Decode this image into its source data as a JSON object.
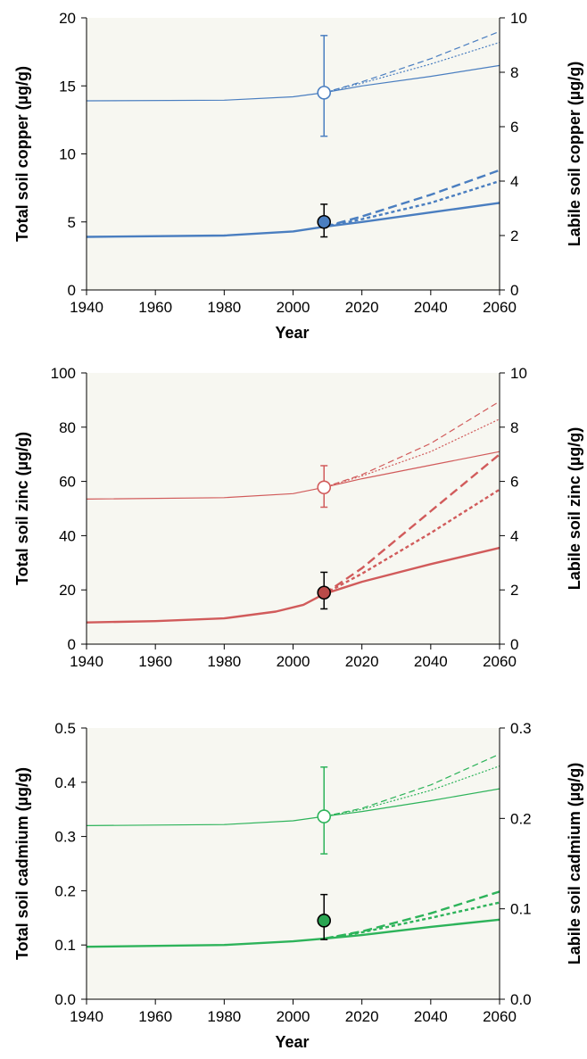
{
  "chart_data": [
    {
      "type": "line",
      "xlabel": "Year",
      "ylabel_left": "Total soil copper (µg/g)",
      "ylabel_right": "Labile soil copper (µg/g)",
      "xlim": [
        1940,
        2060
      ],
      "ylim_left": [
        0,
        20
      ],
      "ylim_right": [
        0,
        10
      ],
      "x_ticks": [
        1940,
        1960,
        1980,
        2000,
        2020,
        2040,
        2060
      ],
      "y_ticks_left": [
        0,
        5,
        10,
        15,
        20
      ],
      "y_ticks_right": [
        0,
        2,
        4,
        6,
        8,
        10
      ],
      "color": "#4a7ec0",
      "marker_color": "#4a7ec0",
      "grid": false,
      "background": "#f7f7f1",
      "series": [
        {
          "axis": "left",
          "style": "thin-solid",
          "x": [
            1940,
            1980,
            2000,
            2009,
            2020,
            2040,
            2060
          ],
          "y": [
            13.9,
            13.95,
            14.2,
            14.5,
            15.0,
            15.7,
            16.5
          ]
        },
        {
          "axis": "left",
          "style": "thin-dashed",
          "x": [
            2009,
            2020,
            2040,
            2060
          ],
          "y": [
            14.5,
            15.3,
            17.0,
            19.0
          ]
        },
        {
          "axis": "left",
          "style": "thin-dotted",
          "x": [
            2009,
            2020,
            2040,
            2060
          ],
          "y": [
            14.5,
            15.2,
            16.6,
            18.2
          ]
        },
        {
          "axis": "right",
          "style": "thick-solid",
          "x": [
            1940,
            1980,
            2000,
            2009,
            2020,
            2040,
            2060
          ],
          "y": [
            1.95,
            2.0,
            2.15,
            2.32,
            2.5,
            2.85,
            3.2
          ]
        },
        {
          "axis": "right",
          "style": "thick-dashed",
          "x": [
            2009,
            2020,
            2040,
            2060
          ],
          "y": [
            2.32,
            2.7,
            3.5,
            4.4
          ]
        },
        {
          "axis": "right",
          "style": "thick-dotted",
          "x": [
            2009,
            2020,
            2040,
            2060
          ],
          "y": [
            2.32,
            2.6,
            3.2,
            4.0
          ]
        }
      ],
      "observations": [
        {
          "axis": "left",
          "x": 2009,
          "y": 14.5,
          "err_low": 11.3,
          "err_high": 18.7,
          "filled": false
        },
        {
          "axis": "left",
          "x": 2009,
          "y": 5.0,
          "err_low": 3.9,
          "err_high": 6.3,
          "filled": true
        }
      ]
    },
    {
      "type": "line",
      "xlabel": "",
      "ylabel_left": "Total soil zinc (µg/g)",
      "ylabel_right": "Labile soil zinc (µg/g)",
      "xlim": [
        1940,
        2060
      ],
      "ylim_left": [
        0,
        100
      ],
      "ylim_right": [
        0,
        10
      ],
      "x_ticks": [
        1940,
        1960,
        1980,
        2000,
        2020,
        2040,
        2060
      ],
      "y_ticks_left": [
        0,
        20,
        40,
        60,
        80,
        100
      ],
      "y_ticks_right": [
        0,
        2,
        4,
        6,
        8,
        10
      ],
      "color": "#d15b5b",
      "marker_color": "#b94a48",
      "grid": false,
      "background": "#f7f7f1",
      "series": [
        {
          "axis": "left",
          "style": "thin-solid",
          "x": [
            1940,
            1980,
            2000,
            2009,
            2020,
            2040,
            2060
          ],
          "y": [
            53.5,
            54.0,
            55.5,
            57.8,
            61.0,
            66.0,
            71.0
          ]
        },
        {
          "axis": "left",
          "style": "thin-dashed",
          "x": [
            2009,
            2020,
            2040,
            2060
          ],
          "y": [
            57.8,
            62.5,
            74.0,
            89.5
          ]
        },
        {
          "axis": "left",
          "style": "thin-dotted",
          "x": [
            2009,
            2020,
            2040,
            2060
          ],
          "y": [
            57.8,
            62.0,
            71.0,
            83.0
          ]
        },
        {
          "axis": "right",
          "style": "thick-solid",
          "x": [
            1940,
            1960,
            1980,
            1995,
            2003,
            2009,
            2020,
            2040,
            2060
          ],
          "y": [
            0.8,
            0.85,
            0.95,
            1.2,
            1.45,
            1.85,
            2.3,
            2.95,
            3.55
          ]
        },
        {
          "axis": "right",
          "style": "thick-dashed",
          "x": [
            2009,
            2020,
            2040,
            2060
          ],
          "y": [
            1.85,
            2.8,
            4.9,
            7.0
          ]
        },
        {
          "axis": "right",
          "style": "thick-dotted",
          "x": [
            2009,
            2020,
            2040,
            2060
          ],
          "y": [
            1.85,
            2.6,
            4.1,
            5.7
          ]
        }
      ],
      "observations": [
        {
          "axis": "left",
          "x": 2009,
          "y": 57.8,
          "err_low": 50.5,
          "err_high": 65.8,
          "filled": false
        },
        {
          "axis": "left",
          "x": 2009,
          "y": 19.0,
          "err_low": 13.0,
          "err_high": 26.5,
          "filled": true
        }
      ]
    },
    {
      "type": "line",
      "xlabel": "Year",
      "ylabel_left": "Total soil cadmium (µg/g)",
      "ylabel_right": "Labile soil cadmium (µg/g)",
      "xlim": [
        1940,
        2060
      ],
      "ylim_left": [
        0.0,
        0.5
      ],
      "ylim_right": [
        0.0,
        0.3
      ],
      "x_ticks": [
        1940,
        1960,
        1980,
        2000,
        2020,
        2040,
        2060
      ],
      "y_ticks_left": [
        0.0,
        0.1,
        0.2,
        0.3,
        0.4,
        0.5
      ],
      "y_ticks_right": [
        0.0,
        0.1,
        0.2,
        0.3
      ],
      "y_tick_labels_left": [
        "0.0",
        "0.1",
        "0.2",
        "0.3",
        "0.4",
        "0.5"
      ],
      "y_tick_labels_right": [
        "0.0",
        "0.1",
        "0.2",
        "0.3"
      ],
      "color": "#2db35a",
      "marker_color": "#2aa552",
      "grid": false,
      "background": "#f7f7f1",
      "series": [
        {
          "axis": "left",
          "style": "thin-solid",
          "x": [
            1940,
            1980,
            2000,
            2009,
            2020,
            2040,
            2060
          ],
          "y": [
            0.32,
            0.322,
            0.329,
            0.337,
            0.346,
            0.366,
            0.388
          ]
        },
        {
          "axis": "left",
          "style": "thin-dashed",
          "x": [
            2009,
            2020,
            2040,
            2060
          ],
          "y": [
            0.337,
            0.352,
            0.395,
            0.452
          ]
        },
        {
          "axis": "left",
          "style": "thin-dotted",
          "x": [
            2009,
            2020,
            2040,
            2060
          ],
          "y": [
            0.337,
            0.35,
            0.385,
            0.43
          ]
        },
        {
          "axis": "right",
          "style": "thick-solid",
          "x": [
            1940,
            1980,
            2000,
            2009,
            2020,
            2040,
            2060
          ],
          "y": [
            0.058,
            0.06,
            0.064,
            0.067,
            0.071,
            0.08,
            0.088
          ]
        },
        {
          "axis": "right",
          "style": "thick-dashed",
          "x": [
            2009,
            2020,
            2040,
            2060
          ],
          "y": [
            0.067,
            0.075,
            0.095,
            0.119
          ]
        },
        {
          "axis": "right",
          "style": "thick-dotted",
          "x": [
            2009,
            2020,
            2040,
            2060
          ],
          "y": [
            0.067,
            0.074,
            0.09,
            0.107
          ]
        }
      ],
      "observations": [
        {
          "axis": "left",
          "x": 2009,
          "y": 0.337,
          "err_low": 0.268,
          "err_high": 0.428,
          "filled": false
        },
        {
          "axis": "left",
          "x": 2009,
          "y": 0.145,
          "err_low": 0.11,
          "err_high": 0.193,
          "filled": true
        }
      ]
    }
  ]
}
